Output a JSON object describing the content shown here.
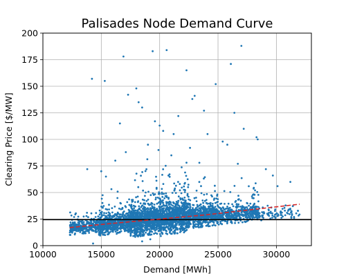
{
  "chart_data": {
    "type": "scatter",
    "title": "Palisades Node Demand Curve",
    "xlabel": "Demand [MWh]",
    "ylabel": "Clearing Price [$/MW]",
    "xlim": [
      10000,
      33000
    ],
    "ylim": [
      0,
      200
    ],
    "xticks": [
      10000,
      15000,
      20000,
      25000,
      30000
    ],
    "yticks": [
      0,
      25,
      50,
      75,
      100,
      125,
      150,
      175,
      200
    ],
    "grid": true,
    "colors": {
      "points": "#1f77b4",
      "trend": "#d62728",
      "reference": "#000000"
    },
    "reference_line": {
      "y": 24.5,
      "style": "solid"
    },
    "trend_line": {
      "style": "dashed",
      "points": [
        [
          12300,
          17
        ],
        [
          16000,
          21
        ],
        [
          20000,
          25
        ],
        [
          24000,
          29
        ],
        [
          28000,
          34
        ],
        [
          32000,
          39
        ]
      ]
    },
    "point_bands": [
      {
        "x_range": [
          12300,
          14800
        ],
        "y_center_start": 16,
        "y_center_end": 19,
        "spread": 5,
        "count": 300
      },
      {
        "x_range": [
          14800,
          17500
        ],
        "y_center_start": 19,
        "y_center_end": 22,
        "spread": 8,
        "count": 650
      },
      {
        "x_range": [
          17500,
          20000
        ],
        "y_center_start": 22,
        "y_center_end": 26,
        "spread": 12,
        "count": 900
      },
      {
        "x_range": [
          20000,
          22500
        ],
        "y_center_start": 26,
        "y_center_end": 28,
        "spread": 13,
        "count": 850
      },
      {
        "x_range": [
          22500,
          25000
        ],
        "y_center_start": 27,
        "y_center_end": 30,
        "spread": 9,
        "count": 550
      },
      {
        "x_range": [
          25000,
          28500
        ],
        "y_center_start": 28,
        "y_center_end": 32,
        "spread": 7,
        "count": 420
      },
      {
        "x_range": [
          28500,
          32000
        ],
        "y_center_start": 28,
        "y_center_end": 32,
        "spread": 5,
        "count": 80
      }
    ],
    "outliers": [
      [
        14200,
        157
      ],
      [
        15300,
        155
      ],
      [
        16900,
        178
      ],
      [
        17300,
        142
      ],
      [
        18000,
        148
      ],
      [
        19400,
        183
      ],
      [
        20600,
        184
      ],
      [
        21600,
        122
      ],
      [
        22300,
        165
      ],
      [
        22800,
        138
      ],
      [
        23000,
        141
      ],
      [
        23800,
        127
      ],
      [
        24800,
        152
      ],
      [
        26100,
        171
      ],
      [
        26400,
        125
      ],
      [
        27000,
        188
      ],
      [
        27200,
        110
      ],
      [
        28300,
        102
      ],
      [
        16600,
        115
      ],
      [
        18200,
        135
      ],
      [
        18500,
        130
      ],
      [
        19600,
        117
      ],
      [
        20000,
        113
      ],
      [
        20300,
        108
      ],
      [
        21200,
        105
      ],
      [
        24100,
        105
      ],
      [
        25400,
        98
      ],
      [
        25800,
        95
      ],
      [
        28400,
        100
      ],
      [
        13800,
        72
      ],
      [
        15000,
        70
      ],
      [
        15400,
        65
      ],
      [
        16200,
        80
      ],
      [
        17100,
        88
      ],
      [
        19000,
        95
      ],
      [
        19900,
        90
      ],
      [
        21000,
        85
      ],
      [
        22600,
        92
      ],
      [
        23400,
        78
      ],
      [
        26700,
        77
      ],
      [
        29100,
        72
      ],
      [
        29700,
        66
      ],
      [
        30100,
        56
      ],
      [
        31200,
        60
      ],
      [
        14300,
        2
      ],
      [
        18500,
        4
      ],
      [
        19200,
        6
      ],
      [
        20100,
        9
      ]
    ]
  }
}
